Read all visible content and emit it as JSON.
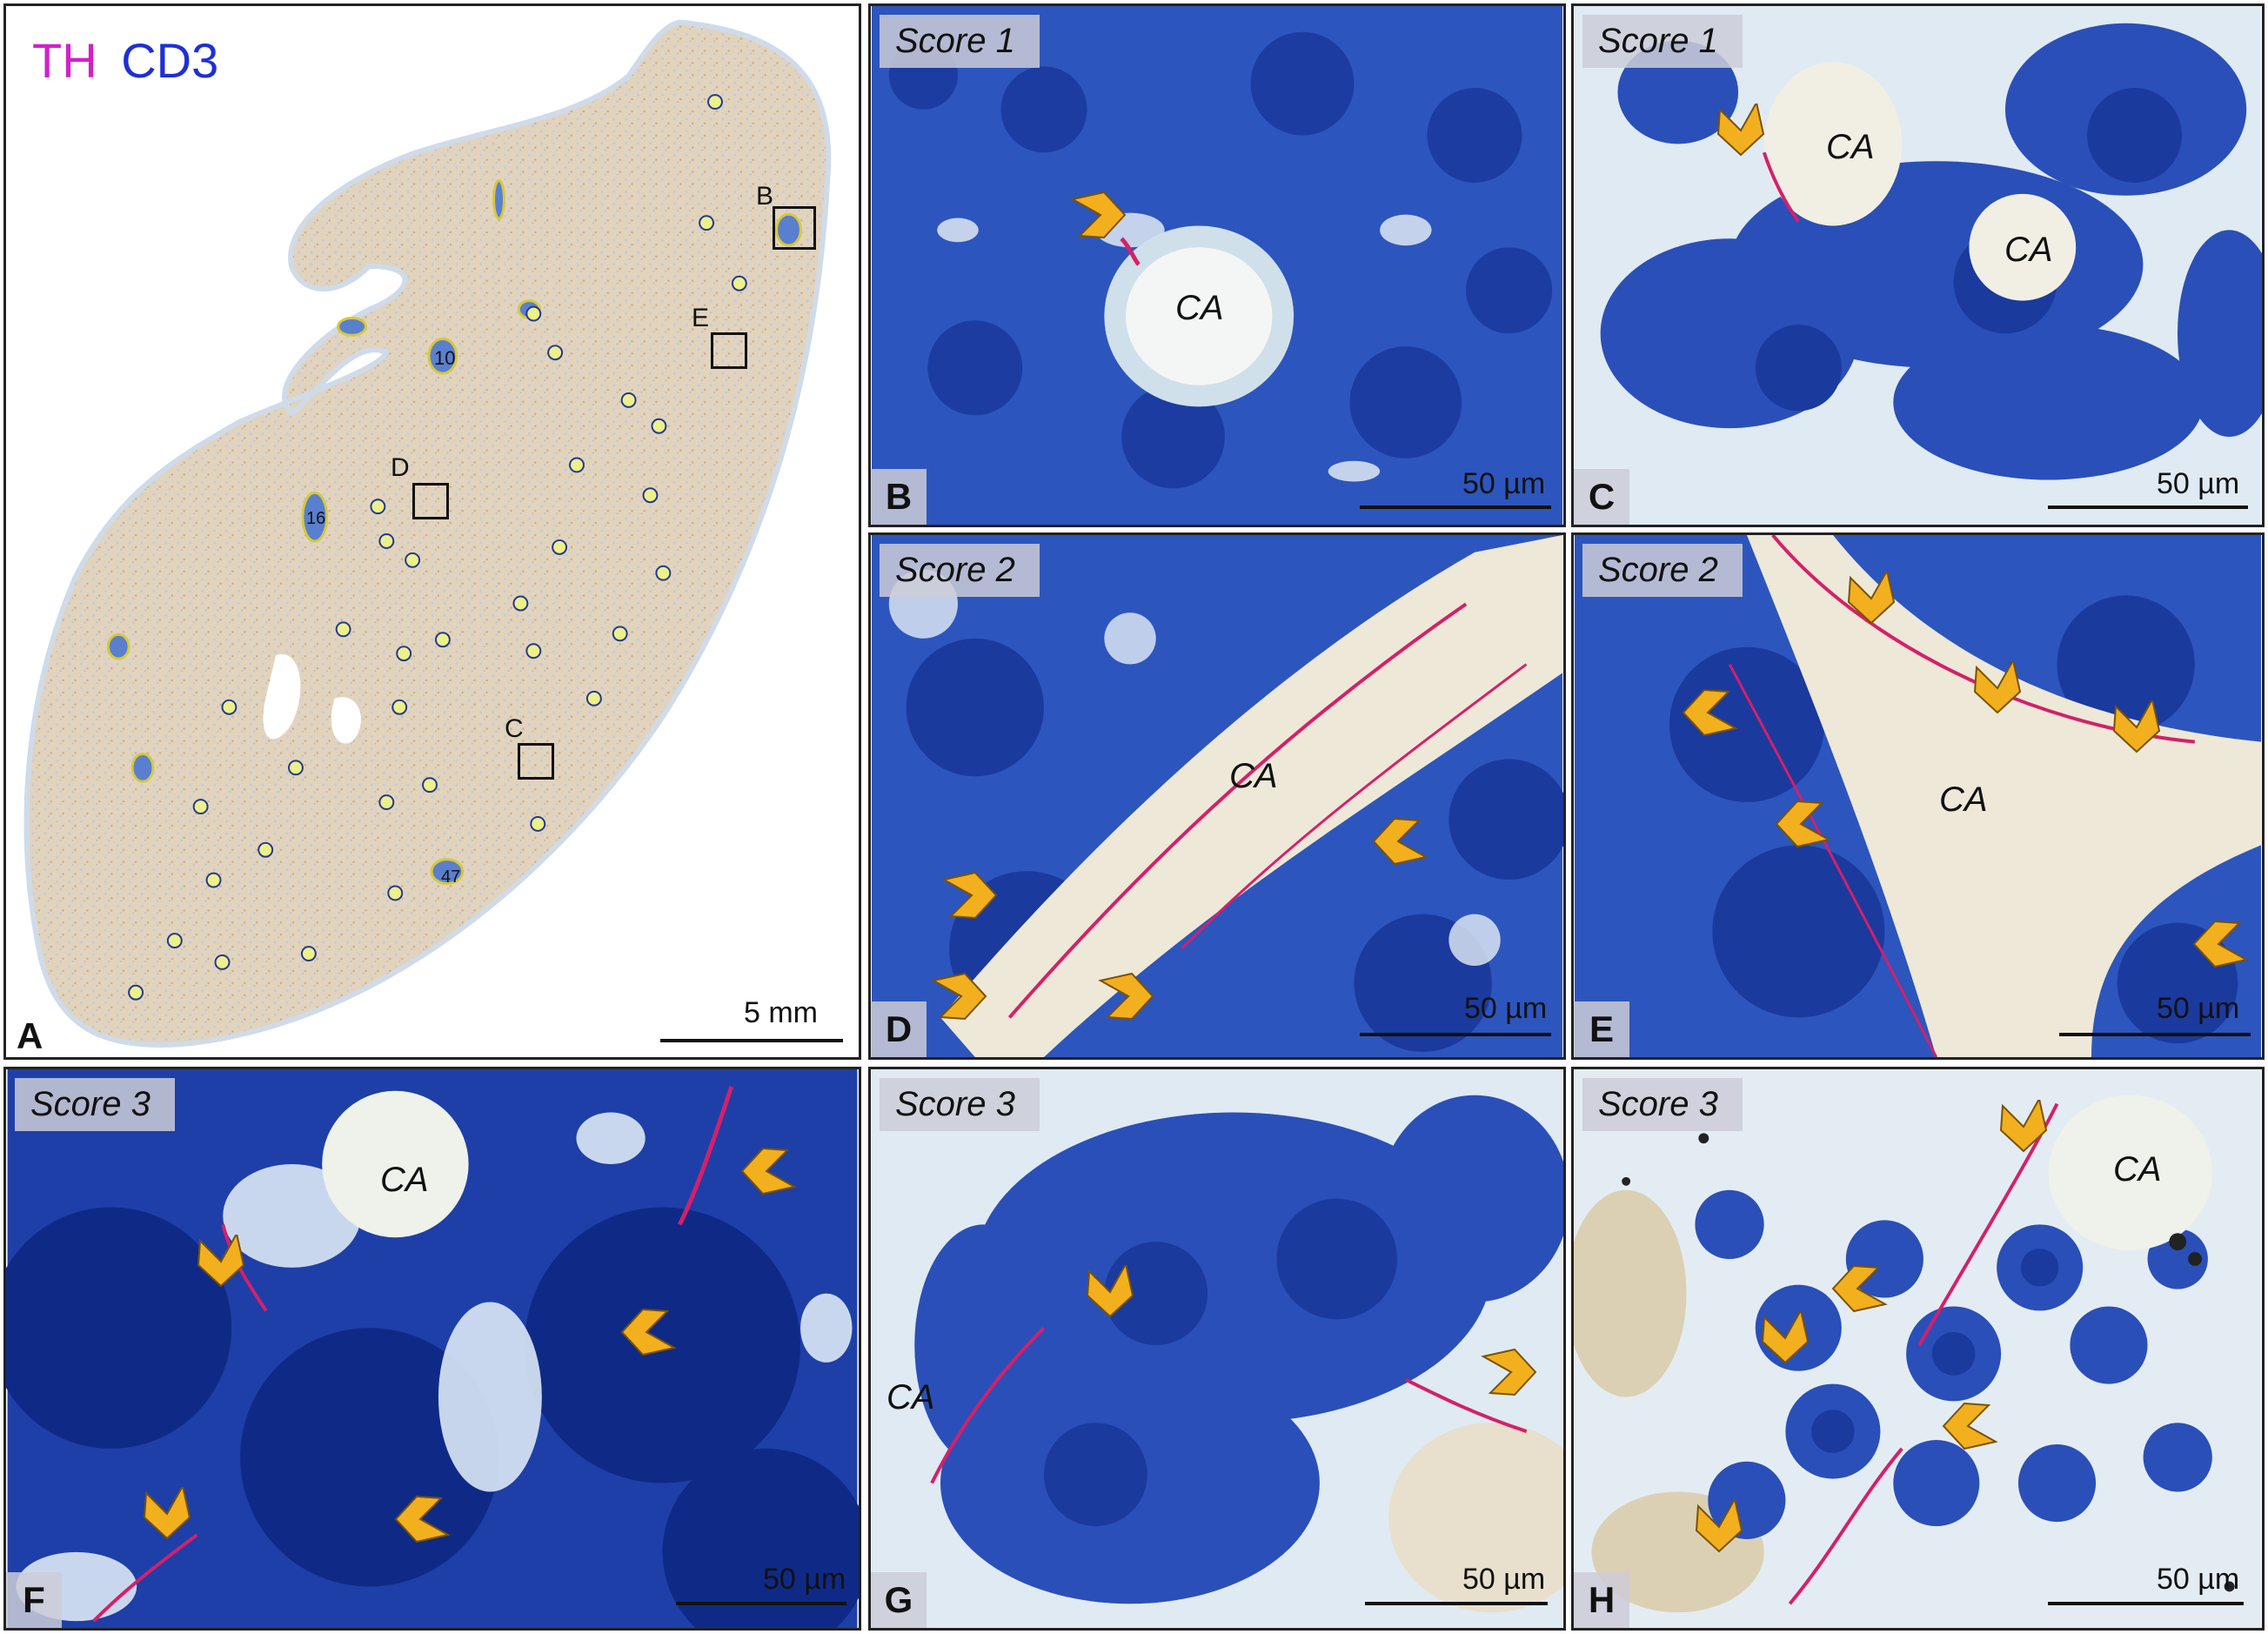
{
  "figure": {
    "legend": {
      "th": "TH",
      "cd3": "CD3",
      "th_color": "#d51fc9",
      "cd3_color": "#1e2fd6"
    },
    "colors": {
      "cell": "#2a4fb8",
      "cell_dark": "#15308f",
      "tissue": "#e4eaf2",
      "ca_lumen": "#f4f1e6",
      "nerve": "#d4206a",
      "arrow": "#f2b01e"
    }
  },
  "panel_a": {
    "label": "A",
    "scale": "5 mm",
    "boxes": [
      {
        "letter": "B"
      },
      {
        "letter": "E"
      },
      {
        "letter": "D"
      },
      {
        "letter": "C"
      }
    ],
    "node_numbers": [
      "10",
      "16",
      "47"
    ]
  },
  "panels": [
    {
      "id": "B",
      "label": "B",
      "score": "Score 1",
      "ca": [
        "CA"
      ],
      "scale": "50 µm"
    },
    {
      "id": "C",
      "label": "C",
      "score": "Score 1",
      "ca": [
        "CA",
        "CA"
      ],
      "scale": "50 µm"
    },
    {
      "id": "D",
      "label": "D",
      "score": "Score 2",
      "ca": [
        "CA"
      ],
      "scale": "50 µm"
    },
    {
      "id": "E",
      "label": "E",
      "score": "Score 2",
      "ca": [
        "CA"
      ],
      "scale": "50 µm"
    },
    {
      "id": "F",
      "label": "F",
      "score": "Score 3",
      "ca": [
        "CA"
      ],
      "scale": "50 µm"
    },
    {
      "id": "G",
      "label": "G",
      "score": "Score 3",
      "ca": [
        "CA"
      ],
      "scale": "50 µm"
    },
    {
      "id": "H",
      "label": "H",
      "score": "Score 3",
      "ca": [
        "CA"
      ],
      "scale": "50 µm"
    }
  ]
}
